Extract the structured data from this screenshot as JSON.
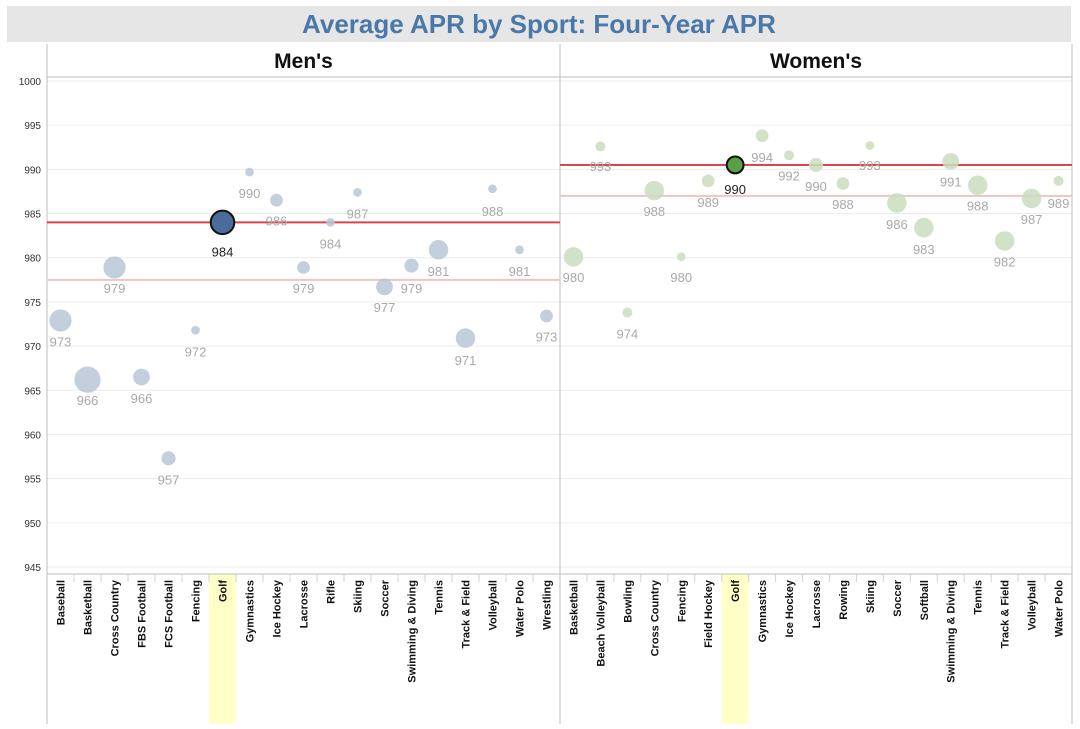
{
  "chart_data": {
    "type": "scatter",
    "title": "Average APR by Sport: Four-Year APR",
    "ylim": [
      945,
      1000
    ],
    "yticks": [
      945,
      950,
      955,
      960,
      965,
      970,
      975,
      980,
      985,
      990,
      995,
      1000
    ],
    "grid": true,
    "highlight_sport": "Golf",
    "colors": {
      "title": "#4a78a8",
      "title_band": "#e6e6e6",
      "men_bubble": "#b9c7d6",
      "men_highlight": "#4a6c9b",
      "women_bubble": "#c9ddbf",
      "women_highlight": "#5a9e45",
      "faded_label": "#a9a9a9",
      "reference_line": "#d9454a",
      "reference_line_light": "#f0c3c5",
      "highlight_band": "#ffffc8"
    },
    "panels": [
      {
        "name": "Men's",
        "categories": [
          "Baseball",
          "Basketball",
          "Cross Country",
          "FBS Football",
          "FCS Football",
          "Fencing",
          "Golf",
          "Gymnastics",
          "Ice Hockey",
          "Lacrosse",
          "Rifle",
          "Skiing",
          "Soccer",
          "Swimming & Diving",
          "Tennis",
          "Track & Field",
          "Volleyball",
          "Water Polo",
          "Wrestling"
        ],
        "values": [
          973,
          966,
          979,
          966,
          957,
          972,
          984,
          990,
          986,
          979,
          984,
          987,
          977,
          979,
          981,
          971,
          988,
          981,
          973
        ],
        "point_y": [
          972.9,
          966.2,
          978.9,
          966.5,
          957.3,
          971.8,
          984.0,
          989.7,
          986.5,
          978.9,
          984.0,
          987.4,
          976.7,
          979.1,
          980.9,
          970.9,
          987.8,
          980.9,
          973.4
        ],
        "label_y": [
          970.5,
          963.9,
          976.6,
          964.1,
          954.9,
          969.4,
          980.7,
          987.3,
          984.2,
          976.6,
          981.6,
          985.0,
          974.4,
          976.6,
          978.5,
          968.4,
          985.3,
          978.5,
          971.1
        ],
        "sizes": [
          6,
          7.5,
          6,
          4,
          3,
          1,
          6.5,
          1,
          2.5,
          2.5,
          1,
          1,
          4,
          3,
          5,
          5,
          1,
          1,
          2.5
        ],
        "reference_values": [
          984,
          977.5
        ]
      },
      {
        "name": "Women's",
        "categories": [
          "Basketball",
          "Beach Volleyball",
          "Bowling",
          "Cross Country",
          "Fencing",
          "Field Hockey",
          "Golf",
          "Gymnastics",
          "Ice Hockey",
          "Lacrosse",
          "Rowing",
          "Skiing",
          "Soccer",
          "Softball",
          "Swimming & Diving",
          "Tennis",
          "Track & Field",
          "Volleyball",
          "Water Polo"
        ],
        "values": [
          980,
          993,
          974,
          988,
          980,
          989,
          990,
          994,
          992,
          990,
          988,
          993,
          986,
          983,
          991,
          988,
          982,
          987,
          989
        ],
        "point_y": [
          980.1,
          992.6,
          973.8,
          987.6,
          980.1,
          988.7,
          990.5,
          993.8,
          991.6,
          990.5,
          988.4,
          992.7,
          986.2,
          983.4,
          990.9,
          988.2,
          981.9,
          986.7,
          988.7
        ],
        "label_y": [
          977.8,
          990.4,
          971.4,
          985.3,
          977.8,
          986.3,
          987.8,
          991.4,
          989.3,
          988.1,
          986.1,
          990.5,
          983.8,
          981.0,
          988.6,
          985.9,
          979.6,
          984.4,
          986.2
        ],
        "sizes": [
          5,
          1.5,
          1.5,
          5,
          1,
          2.5,
          4,
          2.5,
          1.5,
          3,
          2.5,
          1,
          5,
          5,
          4,
          5,
          5,
          5,
          1.5
        ],
        "reference_values": [
          990.5,
          987
        ]
      }
    ]
  }
}
